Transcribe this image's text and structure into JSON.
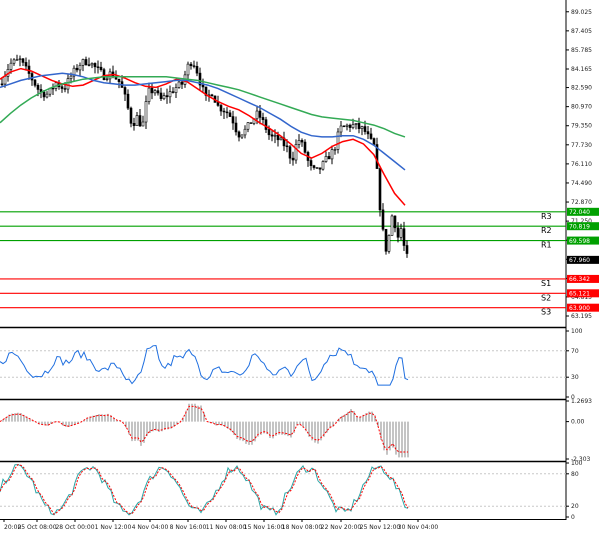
{
  "chart_data": {
    "type": "candlestick",
    "price_axis_labels": [
      "89.025",
      "87.405",
      "85.785",
      "84.165",
      "82.590",
      "80.970",
      "79.350",
      "77.730",
      "76.110",
      "74.490",
      "72.870",
      "71.250",
      "69.630",
      "68.010",
      "66.390",
      "64.815",
      "63.195"
    ],
    "time_axis_labels": [
      "20:00",
      "25 Oct 08:00",
      "28 Oct 00:00",
      "1 Nov 12:00",
      "4 Nov 04:00",
      "8 Nov 16:00",
      "11 Nov 08:00",
      "15 Nov 16:00",
      "18 Nov 08:00",
      "22 Nov 20:00",
      "25 Nov 12:00",
      "30 Nov 04:00"
    ],
    "levels": [
      {
        "label": "R3",
        "value": 72.04,
        "price_text": "72.040",
        "color": "#00a000"
      },
      {
        "label": "R2",
        "value": 70.819,
        "price_text": "70.819",
        "color": "#00a000"
      },
      {
        "label": "R1",
        "value": 69.598,
        "price_text": "69.598",
        "color": "#00a000"
      },
      {
        "label": "S1",
        "value": 66.342,
        "price_text": "66.342",
        "color": "#ff0000"
      },
      {
        "label": "S2",
        "value": 65.121,
        "price_text": "65.121",
        "color": "#ff0000"
      },
      {
        "label": "S3",
        "value": 63.9,
        "price_text": "63.900",
        "color": "#ff0000"
      }
    ],
    "current_price": {
      "value": 67.96,
      "text": "67.960"
    },
    "price_range": [
      62.6,
      89.6
    ],
    "moving_averages": [
      {
        "color": "#ff0000",
        "values": [
          83.3,
          83.9,
          84.2,
          84.0,
          83.6,
          83.2,
          82.9,
          82.7,
          82.8,
          83.2,
          83.6,
          83.7,
          83.4,
          83.0,
          82.7,
          82.6,
          82.9,
          83.3,
          83.1,
          82.5,
          81.9,
          81.4,
          81.0,
          80.7,
          80.2,
          79.6,
          79.1,
          78.5,
          77.8,
          77.0,
          76.6,
          77.0,
          77.6,
          78.0,
          78.2,
          77.8,
          76.9,
          75.2,
          73.6,
          72.6
        ]
      },
      {
        "color": "#3366cc",
        "values": [
          82.6,
          82.9,
          83.2,
          83.4,
          83.6,
          83.7,
          83.8,
          83.7,
          83.5,
          83.2,
          83.0,
          82.9,
          82.8,
          82.8,
          82.9,
          83.0,
          83.1,
          83.2,
          83.2,
          83.0,
          82.8,
          82.5,
          82.1,
          81.7,
          81.3,
          80.9,
          80.4,
          79.9,
          79.3,
          78.8,
          78.5,
          78.4,
          78.4,
          78.5,
          78.5,
          78.2,
          77.7,
          77.0,
          76.3,
          75.6
        ]
      },
      {
        "color": "#33aa55",
        "values": [
          79.6,
          80.4,
          81.1,
          81.7,
          82.2,
          82.6,
          82.9,
          83.1,
          83.3,
          83.4,
          83.5,
          83.5,
          83.5,
          83.5,
          83.5,
          83.5,
          83.5,
          83.4,
          83.3,
          83.2,
          83.0,
          82.8,
          82.6,
          82.4,
          82.1,
          81.8,
          81.5,
          81.2,
          80.9,
          80.6,
          80.3,
          80.1,
          80.0,
          79.9,
          79.8,
          79.6,
          79.4,
          79.1,
          78.7,
          78.4
        ]
      }
    ],
    "indicators": [
      {
        "axis_labels": [
          "100",
          "70",
          "30",
          "0"
        ],
        "ylim": [
          0,
          100
        ],
        "levels": [
          70,
          30
        ]
      },
      {
        "axis_labels": [
          "1.2693",
          "0.00",
          "-2.303"
        ],
        "ylim": [
          -2.303,
          1.2693
        ]
      },
      {
        "axis_labels": [
          "100",
          "80",
          "20",
          "0"
        ],
        "ylim": [
          0,
          100
        ],
        "levels": [
          80,
          20
        ]
      }
    ]
  }
}
